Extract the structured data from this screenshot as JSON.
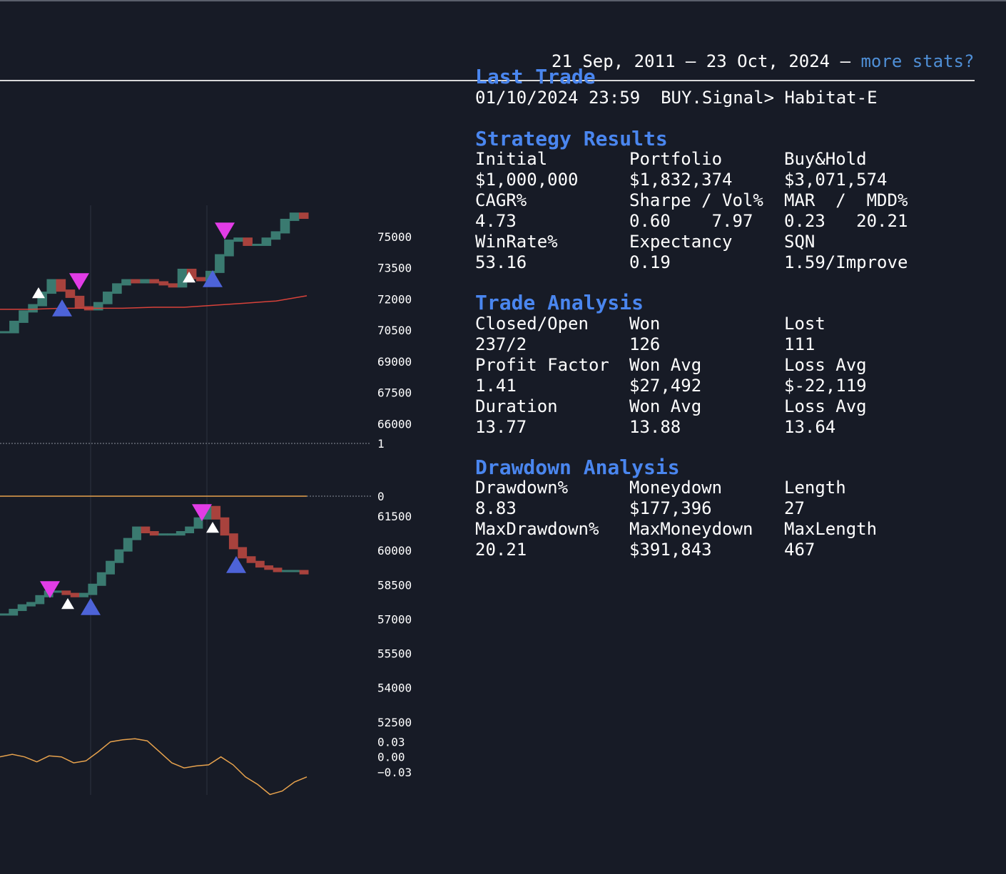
{
  "header": {
    "range": "21 Sep, 2011 – 23 Oct, 2024 –",
    "more_stats": "more stats?"
  },
  "last_trade": {
    "title": "Last Trade",
    "line": "01/10/2024 23:59  BUY.Signal> Habitat-E"
  },
  "strategy_results": {
    "title": "Strategy Results",
    "rows": [
      [
        "Initial",
        "Portfolio",
        "Buy&Hold"
      ],
      [
        "$1,000,000",
        "$1,832,374",
        "$3,071,574"
      ],
      [
        "CAGR%",
        "Sharpe / Vol%",
        "MAR  /  MDD%"
      ],
      [
        "4.73",
        "0.60    7.97",
        "0.23   20.21"
      ],
      [
        "WinRate%",
        "Expectancy",
        "SQN"
      ],
      [
        "53.16",
        "0.19",
        "1.59/Improve"
      ]
    ]
  },
  "trade_analysis": {
    "title": "Trade Analysis",
    "rows": [
      [
        "Closed/Open",
        "Won",
        "Lost"
      ],
      [
        "237/2",
        "126",
        "111"
      ],
      [
        "Profit Factor",
        "Won Avg",
        "Loss Avg"
      ],
      [
        "1.41",
        "$27,492",
        "$-22,119"
      ],
      [
        "Duration",
        "Won Avg",
        "Loss Avg"
      ],
      [
        "13.77",
        "13.88",
        "13.64"
      ]
    ]
  },
  "drawdown_analysis": {
    "title": "Drawdown Analysis",
    "rows": [
      [
        "Drawdown%",
        "Moneydown",
        "Length"
      ],
      [
        "8.83",
        "$177,396",
        "27"
      ],
      [
        "MaxDrawdown%",
        "MaxMoneydown",
        "MaxLength"
      ],
      [
        "20.21",
        "$391,843",
        "467"
      ]
    ]
  },
  "colors": {
    "background": "#171b26",
    "accent": "#4a86ef",
    "link": "#4f8fd6",
    "candle_up": "#3a7a70",
    "candle_down": "#a8423d",
    "buy_marker": "#4d63d8",
    "sell_marker": "#e23ce6",
    "entry_marker": "#ffffff",
    "ma_line": "#d8423a",
    "osc_line": "#e7a24d"
  },
  "chart_data": [
    {
      "type": "line",
      "title": "",
      "series": [
        {
          "values": [
            70400,
            70900,
            71400,
            71700,
            72300,
            72900,
            72400,
            72100,
            71600,
            71500,
            71800,
            72300,
            72700,
            72900,
            72800,
            72900,
            72800,
            72700,
            72600,
            73400,
            73000,
            72900,
            73300,
            74100,
            74800,
            74900,
            74600,
            74600,
            74900,
            75200,
            75800,
            76100,
            75900
          ]
        }
      ],
      "ma_values": [
        71500,
        71500,
        71550,
        71550,
        71550,
        71600,
        71600,
        71700,
        71800,
        71900,
        72150
      ],
      "y_ticks": [
        75000,
        73500,
        72000,
        70500,
        69000,
        67500,
        66000
      ],
      "ylim": [
        65500,
        76500
      ]
    },
    {
      "type": "line",
      "title": "",
      "y_ticks": [
        1,
        0
      ],
      "ylim": [
        0,
        1
      ]
    },
    {
      "type": "line",
      "title": "",
      "series": [
        {
          "values": [
            57200,
            57400,
            57600,
            57700,
            58000,
            58200,
            58200,
            58100,
            58000,
            58100,
            58500,
            59000,
            59500,
            60000,
            60500,
            61000,
            60800,
            60700,
            60700,
            60700,
            60800,
            61000,
            61400,
            61900,
            61400,
            60700,
            60100,
            59700,
            59500,
            59300,
            59200,
            59100,
            59100,
            59100,
            59000
          ]
        }
      ],
      "y_ticks": [
        61500,
        60000,
        58500,
        57000,
        55500,
        54000,
        52500
      ],
      "ylim": [
        51900,
        62000
      ]
    },
    {
      "type": "line",
      "title": "",
      "series": [
        {
          "values": [
            0.0,
            0.005,
            0.0,
            -0.01,
            0.002,
            0.0,
            -0.012,
            -0.008,
            0.01,
            0.03,
            0.034,
            0.036,
            0.032,
            0.01,
            -0.012,
            -0.022,
            -0.018,
            -0.016,
            0.0,
            -0.016,
            -0.04,
            -0.055,
            -0.075,
            -0.068,
            -0.05,
            -0.04
          ]
        }
      ],
      "y_ticks": [
        "0.03",
        "0.00",
        "−0.03"
      ],
      "ylim": [
        -0.08,
        0.045
      ]
    }
  ]
}
